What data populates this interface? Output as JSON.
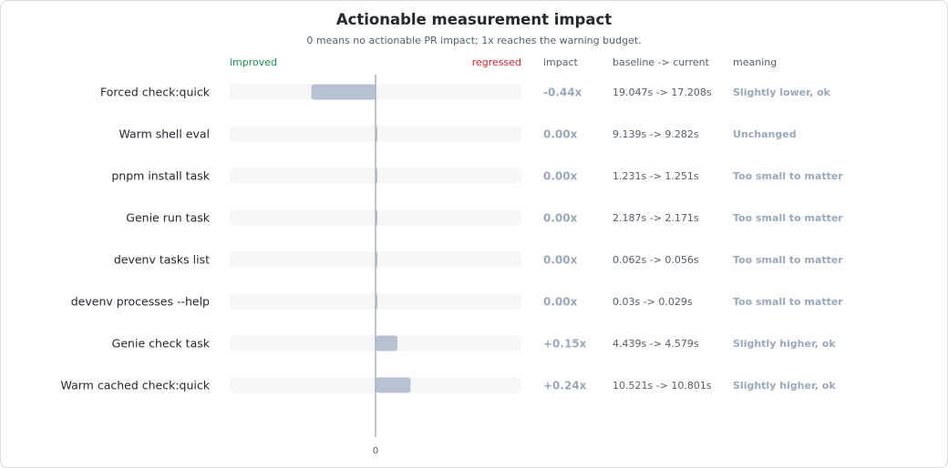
{
  "header": {
    "title": "Actionable measurement impact",
    "subtitle": "0 means no actionable PR impact; 1x reaches the warning budget.",
    "improved_label": "improved",
    "regressed_label": "regressed",
    "col_impact": "impact",
    "col_baseline": "baseline -> current",
    "col_meaning": "meaning"
  },
  "colors": {
    "bar": "#b7c1cf",
    "track": "#f5f6f8",
    "axis": "#aab2bd",
    "improved": "#1a8f4e",
    "regressed": "#d1242f",
    "muted_text": "#9aa8bc"
  },
  "chart_data": {
    "type": "bar",
    "orientation": "horizontal",
    "xlim": [
      -1,
      1
    ],
    "x_tick_labels": [
      "0"
    ],
    "categories": [
      "Forced check:quick",
      "Warm shell eval",
      "pnpm install task",
      "Genie run task",
      "devenv tasks list",
      "devenv processes --help",
      "Genie check task",
      "Warm cached check:quick"
    ],
    "values": [
      -0.44,
      0.0,
      0.0,
      0.0,
      0.0,
      0.0,
      0.15,
      0.24
    ],
    "impact_labels": [
      "-0.44x",
      "0.00x",
      "0.00x",
      "0.00x",
      "0.00x",
      "0.00x",
      "+0.15x",
      "+0.24x"
    ],
    "baseline_current": [
      "19.047s -> 17.208s",
      "9.139s -> 9.282s",
      "1.231s -> 1.251s",
      "2.187s -> 2.171s",
      "0.062s -> 0.056s",
      "0.03s -> 0.029s",
      "4.439s -> 4.579s",
      "10.521s -> 10.801s"
    ],
    "meanings": [
      "Slightly lower, ok",
      "Unchanged",
      "Too small to matter",
      "Too small to matter",
      "Too small to matter",
      "Too small to matter",
      "Slightly higher, ok",
      "Slightly higher, ok"
    ]
  }
}
